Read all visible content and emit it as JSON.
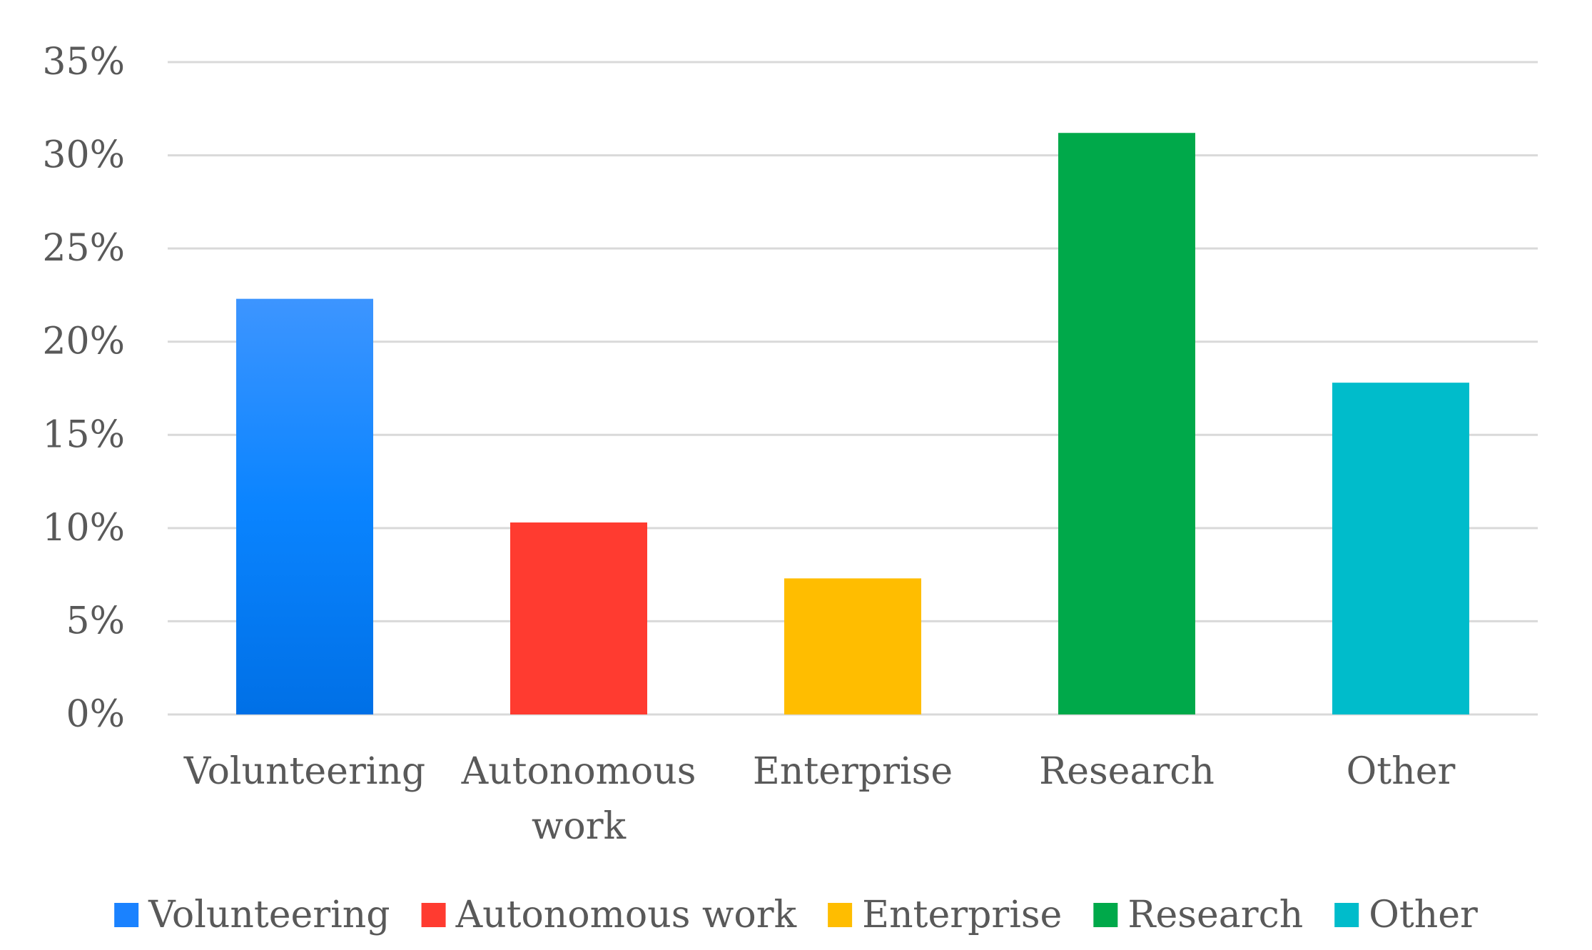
{
  "chart_data": {
    "type": "bar",
    "categories": [
      "Volunteering",
      "Autonomous work",
      "Enterprise",
      "Research",
      "Other"
    ],
    "category_tick_lines": [
      [
        "Volunteering"
      ],
      [
        "Autonomous",
        "work"
      ],
      [
        "Enterprise"
      ],
      [
        "Research"
      ],
      [
        "Other"
      ]
    ],
    "values": [
      22.3,
      10.3,
      7.3,
      31.2,
      17.8
    ],
    "unit": "%",
    "ylim": [
      0,
      35
    ],
    "yticks": [
      0,
      5,
      10,
      15,
      20,
      25,
      30,
      35
    ],
    "ytick_labels": [
      "0%",
      "5%",
      "10%",
      "15%",
      "20%",
      "25%",
      "30%",
      "35%"
    ],
    "colors": [
      "#1a82ff",
      "#ff3b30",
      "#ffbd00",
      "#00a94a",
      "#00bccb"
    ],
    "legend": {
      "position": "bottom",
      "entries": [
        "Volunteering",
        "Autonomous work",
        "Enterprise",
        "Research",
        "Other"
      ]
    },
    "grid": true,
    "title": "",
    "xlabel": "",
    "ylabel": ""
  }
}
